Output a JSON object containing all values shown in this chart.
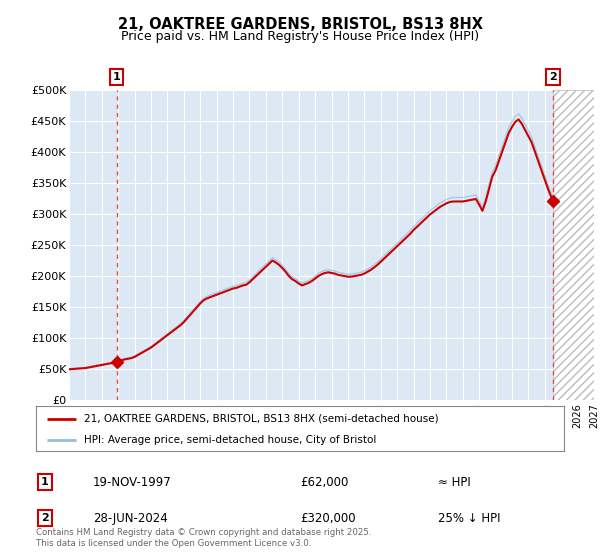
{
  "title": "21, OAKTREE GARDENS, BRISTOL, BS13 8HX",
  "subtitle": "Price paid vs. HM Land Registry's House Price Index (HPI)",
  "sale1_year": 1997.9,
  "sale1_price": 62000,
  "sale1_date": "19-NOV-1997",
  "sale2_year": 2024.5,
  "sale2_price": 320000,
  "sale2_date": "28-JUN-2024",
  "hpi_note1": "≈ HPI",
  "hpi_note2": "25% ↓ HPI",
  "legend_line1": "21, OAKTREE GARDENS, BRISTOL, BS13 8HX (semi-detached house)",
  "legend_line2": "HPI: Average price, semi-detached house, City of Bristol",
  "footnote": "Contains HM Land Registry data © Crown copyright and database right 2025.\nThis data is licensed under the Open Government Licence v3.0.",
  "xmin": 1995,
  "xmax": 2027,
  "ymin": 0,
  "ymax": 500000,
  "yticks": [
    0,
    50000,
    100000,
    150000,
    200000,
    250000,
    300000,
    350000,
    400000,
    450000,
    500000
  ],
  "ytick_labels": [
    "£0",
    "£50K",
    "£100K",
    "£150K",
    "£200K",
    "£250K",
    "£300K",
    "£350K",
    "£400K",
    "£450K",
    "£500K"
  ],
  "plot_bg": "#dce9f5",
  "line_color": "#cc0000",
  "hpi_color": "#99bbdd",
  "vline_color": "#ee3333",
  "grid_color": "#ffffff",
  "future_hatch_start": 2024.5,
  "prop_data_x": [
    1995.0,
    1995.1,
    1995.2,
    1995.3,
    1995.4,
    1995.5,
    1995.6,
    1995.7,
    1995.8,
    1995.9,
    1996.0,
    1996.1,
    1996.2,
    1996.3,
    1996.4,
    1996.5,
    1996.6,
    1996.7,
    1996.8,
    1996.9,
    1997.0,
    1997.1,
    1997.2,
    1997.3,
    1997.4,
    1997.5,
    1997.6,
    1997.7,
    1997.8,
    1997.9,
    1998.0,
    1998.2,
    1998.4,
    1998.6,
    1998.8,
    1999.0,
    1999.2,
    1999.4,
    1999.6,
    1999.8,
    2000.0,
    2000.2,
    2000.4,
    2000.6,
    2000.8,
    2001.0,
    2001.2,
    2001.4,
    2001.6,
    2001.8,
    2002.0,
    2002.2,
    2002.4,
    2002.6,
    2002.8,
    2003.0,
    2003.2,
    2003.4,
    2003.6,
    2003.8,
    2004.0,
    2004.2,
    2004.4,
    2004.6,
    2004.8,
    2005.0,
    2005.2,
    2005.4,
    2005.6,
    2005.8,
    2006.0,
    2006.2,
    2006.4,
    2006.6,
    2006.8,
    2007.0,
    2007.2,
    2007.4,
    2007.6,
    2007.8,
    2008.0,
    2008.2,
    2008.4,
    2008.6,
    2008.8,
    2009.0,
    2009.2,
    2009.4,
    2009.6,
    2009.8,
    2010.0,
    2010.2,
    2010.4,
    2010.6,
    2010.8,
    2011.0,
    2011.2,
    2011.4,
    2011.6,
    2011.8,
    2012.0,
    2012.2,
    2012.4,
    2012.6,
    2012.8,
    2013.0,
    2013.2,
    2013.4,
    2013.6,
    2013.8,
    2014.0,
    2014.2,
    2014.4,
    2014.6,
    2014.8,
    2015.0,
    2015.2,
    2015.4,
    2015.6,
    2015.8,
    2016.0,
    2016.2,
    2016.4,
    2016.6,
    2016.8,
    2017.0,
    2017.2,
    2017.4,
    2017.6,
    2017.8,
    2018.0,
    2018.2,
    2018.4,
    2018.6,
    2018.8,
    2019.0,
    2019.2,
    2019.4,
    2019.6,
    2019.8,
    2020.0,
    2020.2,
    2020.4,
    2020.6,
    2020.8,
    2021.0,
    2021.2,
    2021.4,
    2021.6,
    2021.8,
    2022.0,
    2022.2,
    2022.4,
    2022.6,
    2022.8,
    2023.0,
    2023.2,
    2023.4,
    2023.6,
    2023.8,
    2024.0,
    2024.2,
    2024.5
  ],
  "prop_data_y": [
    50000,
    50200,
    50400,
    50600,
    50800,
    51000,
    51200,
    51400,
    51600,
    51800,
    52000,
    52500,
    53000,
    53500,
    54000,
    54500,
    55000,
    55500,
    56000,
    56500,
    57000,
    57500,
    58000,
    58500,
    59000,
    59500,
    60000,
    60500,
    61000,
    62000,
    63000,
    64500,
    66000,
    67000,
    68000,
    70000,
    73000,
    76000,
    79000,
    82000,
    85000,
    89000,
    93000,
    97000,
    101000,
    105000,
    109000,
    113000,
    117000,
    121000,
    126000,
    132000,
    138000,
    144000,
    150000,
    156000,
    161000,
    164000,
    166000,
    168000,
    170000,
    172000,
    174000,
    176000,
    178000,
    180000,
    181000,
    183000,
    185000,
    186000,
    190000,
    195000,
    200000,
    205000,
    210000,
    215000,
    220000,
    225000,
    222000,
    218000,
    213000,
    207000,
    200000,
    195000,
    192000,
    188000,
    185000,
    187000,
    189000,
    192000,
    196000,
    200000,
    203000,
    205000,
    206000,
    205000,
    204000,
    202000,
    201000,
    200000,
    199000,
    199000,
    200000,
    201000,
    202000,
    204000,
    207000,
    210000,
    214000,
    218000,
    223000,
    228000,
    233000,
    238000,
    243000,
    248000,
    253000,
    258000,
    263000,
    268000,
    274000,
    279000,
    284000,
    289000,
    294000,
    299000,
    303000,
    307000,
    311000,
    314000,
    317000,
    319000,
    320000,
    320000,
    320000,
    320000,
    321000,
    322000,
    323000,
    324000,
    315000,
    305000,
    320000,
    340000,
    360000,
    370000,
    385000,
    400000,
    415000,
    430000,
    440000,
    448000,
    452000,
    445000,
    435000,
    425000,
    415000,
    400000,
    385000,
    370000,
    355000,
    340000,
    320000
  ]
}
